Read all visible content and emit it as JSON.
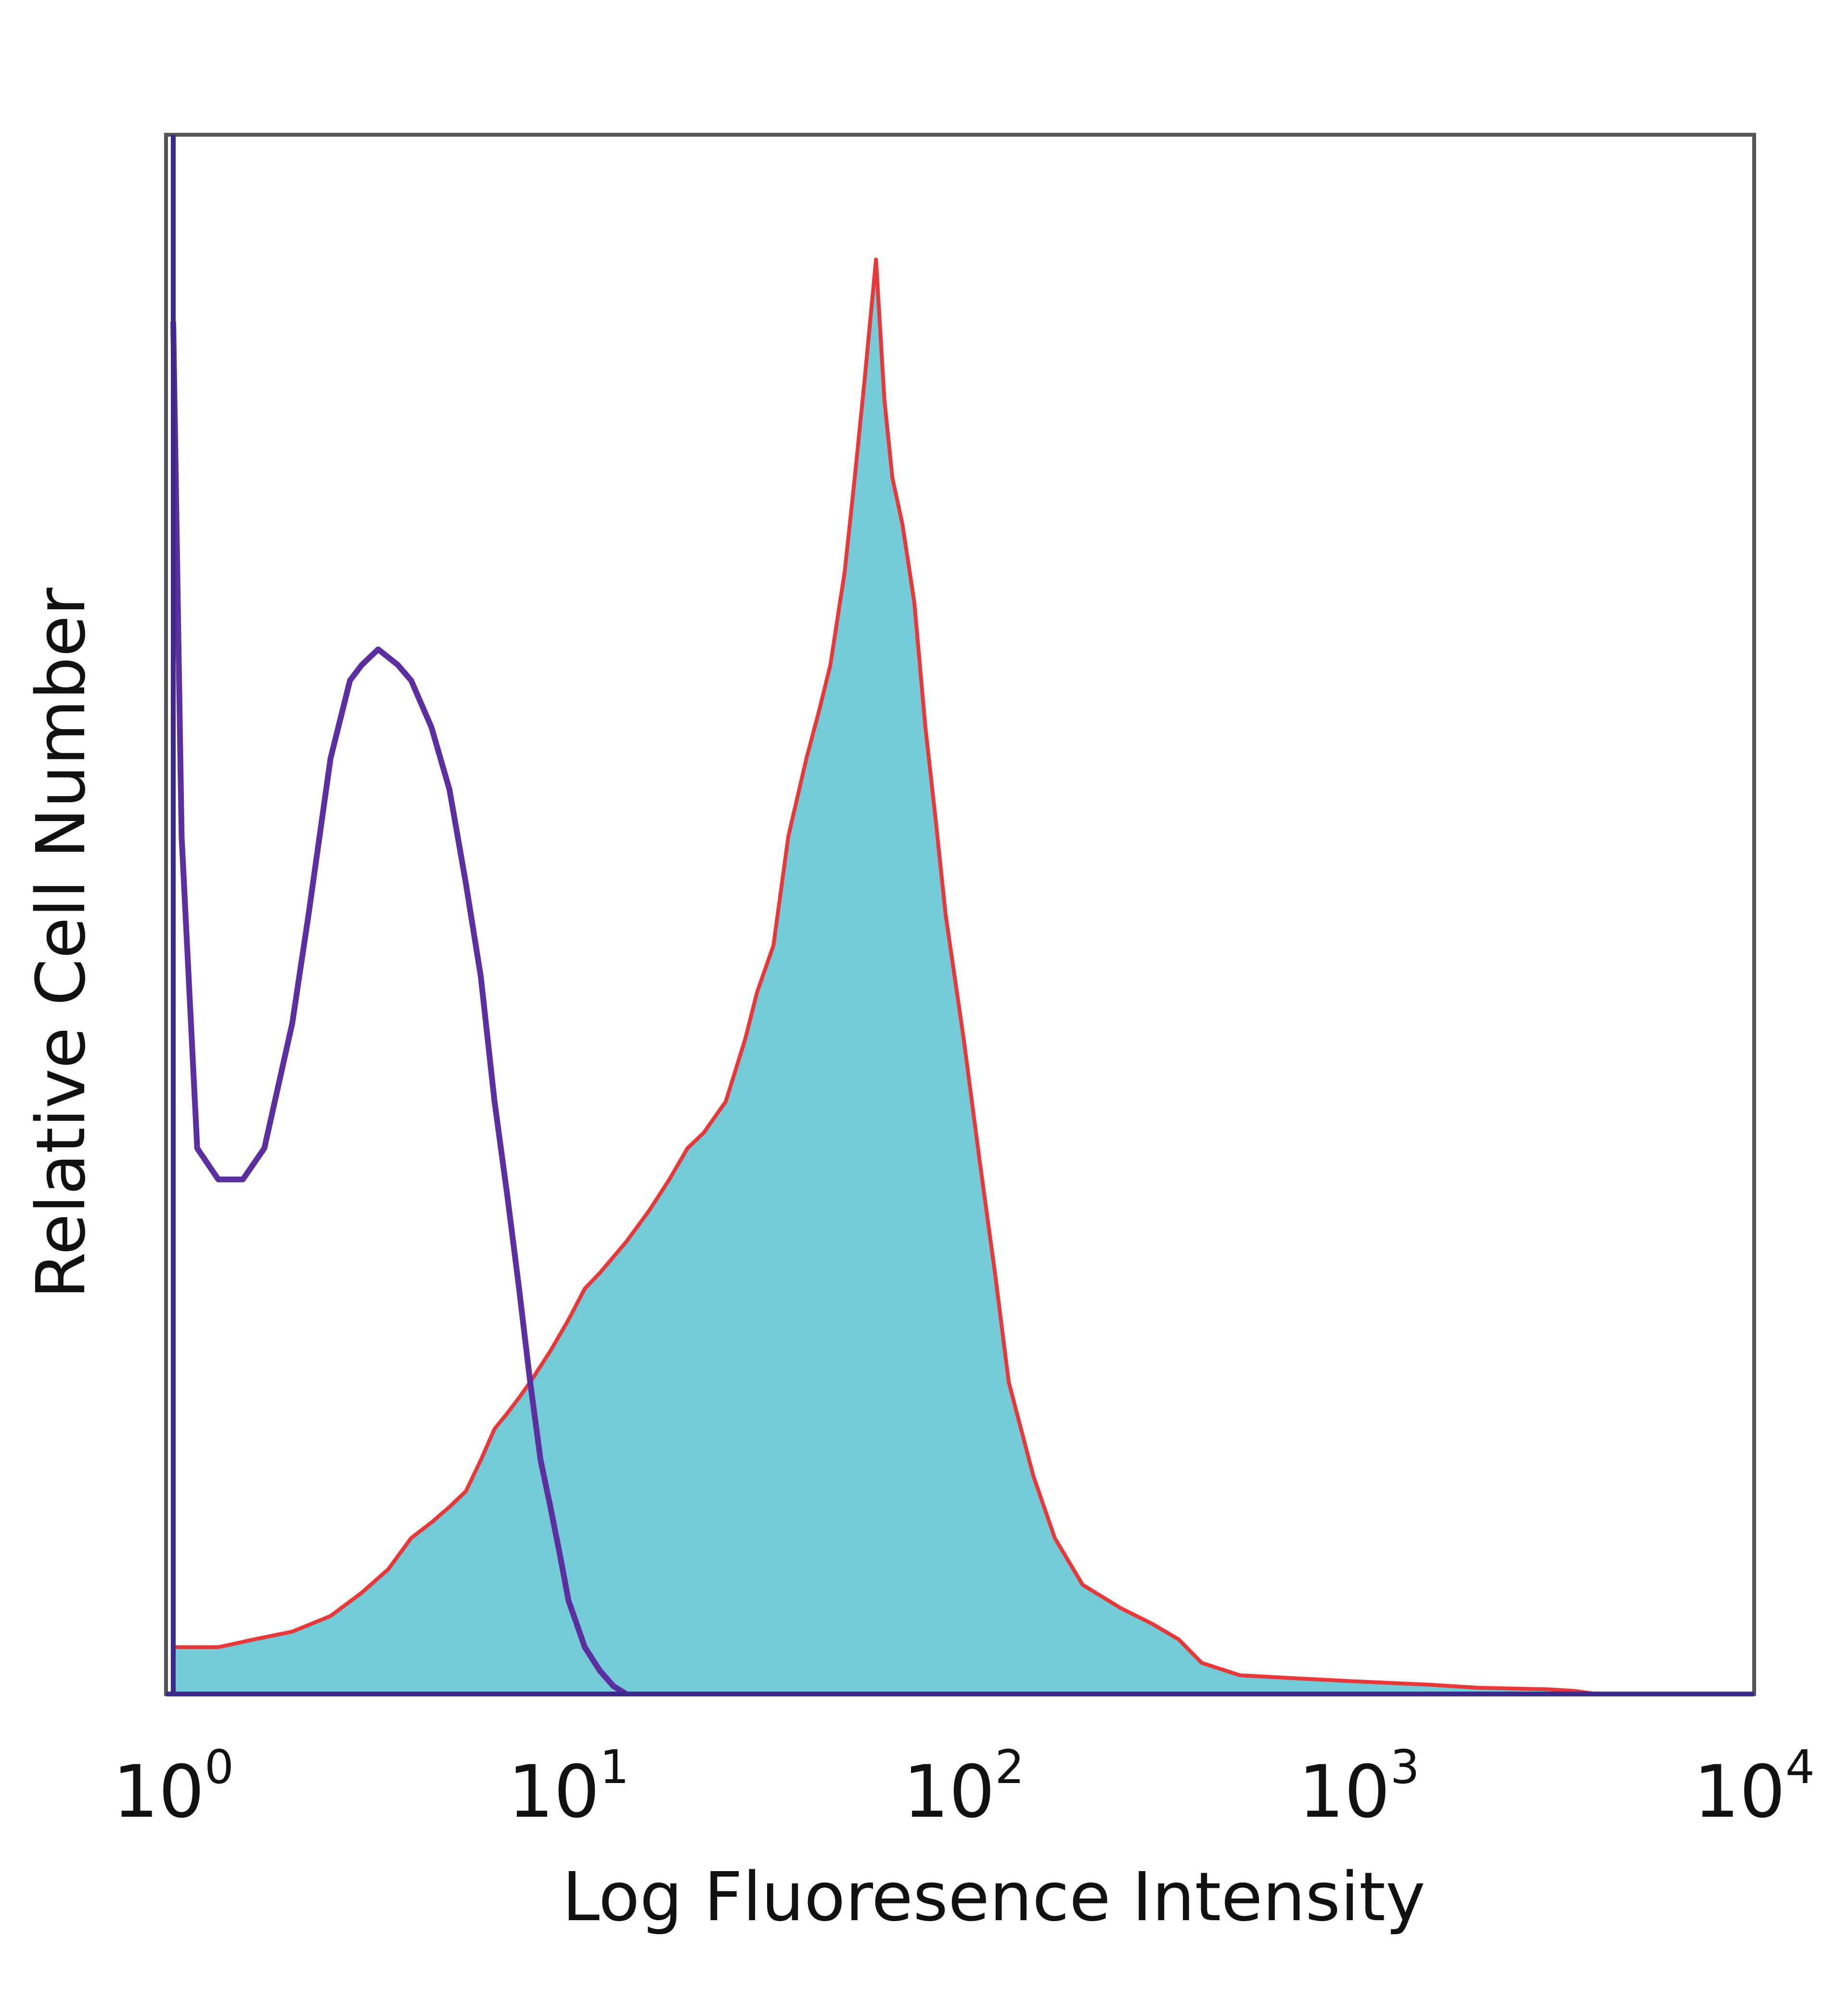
{
  "chart_data": {
    "type": "area",
    "title": "",
    "xlabel": "Log Fluoresence Intensity",
    "ylabel": "Relative Cell Number",
    "xscale": "log",
    "xlim": [
      1,
      10000
    ],
    "ylim": [
      0,
      1
    ],
    "grid": false,
    "legend": "none",
    "x_ticks": [
      {
        "value": 1,
        "base": "10",
        "exp": "0"
      },
      {
        "value": 10,
        "base": "10",
        "exp": "1"
      },
      {
        "value": 100,
        "base": "10",
        "exp": "2"
      },
      {
        "value": 1000,
        "base": "10",
        "exp": "3"
      },
      {
        "value": 10000,
        "base": "10",
        "exp": "4"
      }
    ],
    "series": [
      {
        "style": "filled",
        "fill_color": "#74CAD6",
        "line_color": "#E8383A",
        "points": [
          [
            1.0,
            0.03
          ],
          [
            1.3,
            0.03
          ],
          [
            1.6,
            0.035
          ],
          [
            2.0,
            0.04
          ],
          [
            2.5,
            0.05
          ],
          [
            3.0,
            0.065
          ],
          [
            3.5,
            0.08
          ],
          [
            4.0,
            0.1
          ],
          [
            4.5,
            0.11
          ],
          [
            5.0,
            0.12
          ],
          [
            5.5,
            0.13
          ],
          [
            6.0,
            0.15
          ],
          [
            6.5,
            0.17
          ],
          [
            7.0,
            0.18
          ],
          [
            7.5,
            0.19
          ],
          [
            8.0,
            0.2
          ],
          [
            9.0,
            0.22
          ],
          [
            10.0,
            0.24
          ],
          [
            11.0,
            0.26
          ],
          [
            12.0,
            0.27
          ],
          [
            14.0,
            0.29
          ],
          [
            16.0,
            0.31
          ],
          [
            18.0,
            0.33
          ],
          [
            20.0,
            0.35
          ],
          [
            22.0,
            0.36
          ],
          [
            25.0,
            0.38
          ],
          [
            28.0,
            0.42
          ],
          [
            30.0,
            0.45
          ],
          [
            33.0,
            0.48
          ],
          [
            36.0,
            0.55
          ],
          [
            40.0,
            0.6
          ],
          [
            43.0,
            0.63
          ],
          [
            46.0,
            0.66
          ],
          [
            50.0,
            0.72
          ],
          [
            53.0,
            0.78
          ],
          [
            56.0,
            0.84
          ],
          [
            60.0,
            0.92
          ],
          [
            63.0,
            0.83
          ],
          [
            66.0,
            0.78
          ],
          [
            70.0,
            0.75
          ],
          [
            75.0,
            0.7
          ],
          [
            80.0,
            0.62
          ],
          [
            85.0,
            0.56
          ],
          [
            90.0,
            0.5
          ],
          [
            100.0,
            0.42
          ],
          [
            110.0,
            0.34
          ],
          [
            120.0,
            0.27
          ],
          [
            130.0,
            0.2
          ],
          [
            150.0,
            0.14
          ],
          [
            170.0,
            0.1
          ],
          [
            200.0,
            0.07
          ],
          [
            250.0,
            0.055
          ],
          [
            300.0,
            0.045
          ],
          [
            350.0,
            0.035
          ],
          [
            400.0,
            0.02
          ],
          [
            500.0,
            0.012
          ],
          [
            700.0,
            0.01
          ],
          [
            1000.0,
            0.008
          ],
          [
            1500.0,
            0.006
          ],
          [
            2000.0,
            0.004
          ],
          [
            3000.0,
            0.003
          ],
          [
            3500.0,
            0.002
          ],
          [
            4000.0,
            0.0
          ]
        ]
      },
      {
        "style": "line",
        "line_color": "#5B2FA0",
        "points": [
          [
            1.0,
            0.88
          ],
          [
            1.05,
            0.55
          ],
          [
            1.15,
            0.35
          ],
          [
            1.3,
            0.33
          ],
          [
            1.5,
            0.33
          ],
          [
            1.7,
            0.35
          ],
          [
            2.0,
            0.43
          ],
          [
            2.2,
            0.5
          ],
          [
            2.5,
            0.6
          ],
          [
            2.8,
            0.65
          ],
          [
            3.0,
            0.66
          ],
          [
            3.3,
            0.67
          ],
          [
            3.7,
            0.66
          ],
          [
            4.0,
            0.65
          ],
          [
            4.5,
            0.62
          ],
          [
            5.0,
            0.58
          ],
          [
            5.5,
            0.52
          ],
          [
            6.0,
            0.46
          ],
          [
            6.5,
            0.38
          ],
          [
            7.0,
            0.32
          ],
          [
            7.5,
            0.26
          ],
          [
            8.0,
            0.2
          ],
          [
            8.5,
            0.15
          ],
          [
            9.0,
            0.12
          ],
          [
            9.5,
            0.09
          ],
          [
            10.0,
            0.06
          ],
          [
            11.0,
            0.03
          ],
          [
            12.0,
            0.015
          ],
          [
            13.0,
            0.005
          ],
          [
            14.0,
            0.0
          ]
        ]
      }
    ]
  }
}
